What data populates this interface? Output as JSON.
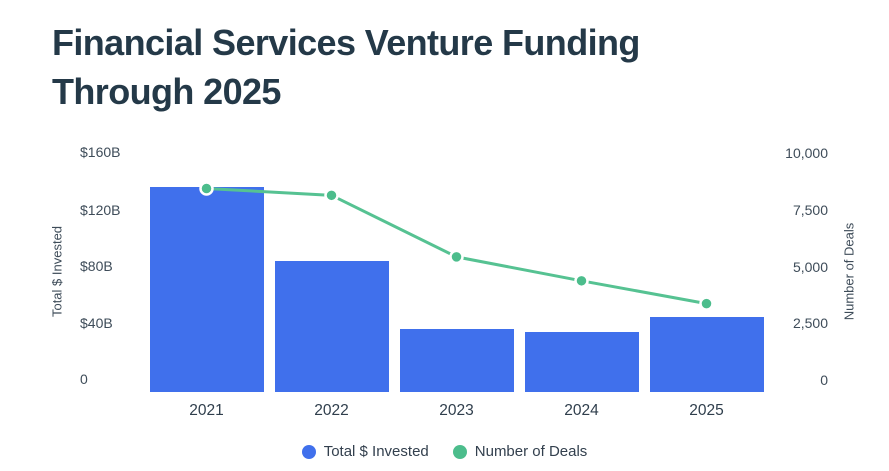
{
  "title": "Financial Services Venture Funding Through 2025",
  "chart_data": {
    "type": "bar",
    "title": "Financial Services Venture Funding Through 2025",
    "categories": [
      "2021",
      "2022",
      "2023",
      "2024",
      "2025"
    ],
    "series": [
      {
        "name": "Total $ Invested",
        "type": "bar",
        "axis": "left",
        "unit": "billions USD",
        "values": [
          135,
          83,
          35,
          33,
          44
        ],
        "color": "#4070EC"
      },
      {
        "name": "Number of Deals",
        "type": "line",
        "axis": "right",
        "values": [
          8400,
          8100,
          5400,
          4350,
          3350
        ],
        "color": "#56C292",
        "point_color": "#4CBD8C"
      }
    ],
    "left_axis": {
      "label": "Total $ Invested",
      "ticks": [
        "$160B",
        "$120B",
        "$80B",
        "$40B",
        "0"
      ],
      "range": [
        0,
        160
      ]
    },
    "right_axis": {
      "label": "Number of Deals",
      "ticks": [
        "10,000",
        "7,500",
        "5,000",
        "2,500",
        "0"
      ],
      "range": [
        0,
        10000
      ]
    },
    "legend": [
      {
        "label": "Total $ Invested",
        "color": "#4070EC"
      },
      {
        "label": "Number of Deals",
        "color": "#4CBD8C"
      }
    ],
    "layout_hints": {
      "grid": "off",
      "legend_position": "bottom-center",
      "bar_color": "#4070EC",
      "line_color": "#56C292",
      "title_color": "#243948",
      "axis_text_color": "#3E4C59"
    }
  }
}
